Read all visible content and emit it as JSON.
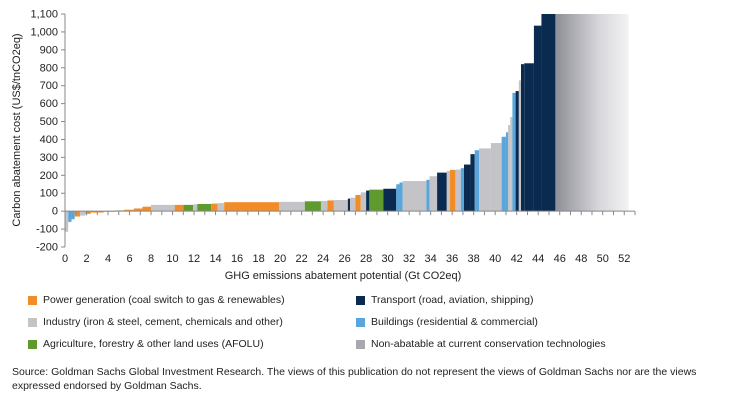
{
  "chart_data": {
    "type": "bar",
    "subtype": "marginal-abatement-cost-curve",
    "xlabel": "GHG emissions abatement potential  (Gt CO2eq)",
    "ylabel": "Carbon abatement cost (US$/tnCO2eq)",
    "xlim": [
      0,
      53
    ],
    "ylim": [
      -200,
      1100
    ],
    "x_ticks": [
      "0",
      "2",
      "4",
      "6",
      "8",
      "10",
      "12",
      "14",
      "16",
      "18",
      "20",
      "22",
      "24",
      "26",
      "28",
      "30",
      "32",
      "34",
      "36",
      "38",
      "40",
      "42",
      "44",
      "46",
      "48",
      "50",
      "52"
    ],
    "y_ticks": [
      "-200",
      "-100",
      "0",
      "100",
      "200",
      "300",
      "400",
      "500",
      "600",
      "700",
      "800",
      "900",
      "1,000",
      "1,100"
    ],
    "grid": false,
    "legend_position": "bottom",
    "series": [
      {
        "key": "power",
        "name": "Power generation (coal switch to gas & renewables)",
        "color": "#f28c28"
      },
      {
        "key": "transport",
        "name": "Transport (road, aviation, shipping)",
        "color": "#0b2a4f"
      },
      {
        "key": "industry",
        "name": "Industry (iron & steel, cement, chemicals and other)",
        "color": "#c4c4c8"
      },
      {
        "key": "buildings",
        "name": "Buildings (residential & commercial)",
        "color": "#5aa6dc"
      },
      {
        "key": "afolu",
        "name": "Agriculture, forestry & other land uses (AFOLU)",
        "color": "#5f9a2e"
      },
      {
        "key": "nonabatable",
        "name": "Non-abatable at current conservation technologies",
        "color": "#a8a8ae"
      }
    ],
    "bars": [
      {
        "x0": 0.0,
        "x1": 0.3,
        "value": -115,
        "series": "industry"
      },
      {
        "x0": 0.3,
        "x1": 0.6,
        "value": -60,
        "series": "buildings"
      },
      {
        "x0": 0.6,
        "x1": 0.9,
        "value": -45,
        "series": "buildings"
      },
      {
        "x0": 0.9,
        "x1": 1.4,
        "value": -30,
        "series": "power"
      },
      {
        "x0": 1.4,
        "x1": 1.9,
        "value": -25,
        "series": "industry"
      },
      {
        "x0": 1.9,
        "x1": 2.4,
        "value": -15,
        "series": "power"
      },
      {
        "x0": 2.4,
        "x1": 3.6,
        "value": -8,
        "series": "power"
      },
      {
        "x0": 3.6,
        "x1": 4.6,
        "value": -4,
        "series": "industry"
      },
      {
        "x0": 4.6,
        "x1": 5.5,
        "value": 4,
        "series": "afolu"
      },
      {
        "x0": 5.5,
        "x1": 6.4,
        "value": 8,
        "series": "power"
      },
      {
        "x0": 6.4,
        "x1": 7.2,
        "value": 15,
        "series": "power"
      },
      {
        "x0": 7.2,
        "x1": 8.0,
        "value": 25,
        "series": "power"
      },
      {
        "x0": 8.0,
        "x1": 10.2,
        "value": 35,
        "series": "industry"
      },
      {
        "x0": 10.2,
        "x1": 11.0,
        "value": 35,
        "series": "power"
      },
      {
        "x0": 11.0,
        "x1": 11.9,
        "value": 35,
        "series": "afolu"
      },
      {
        "x0": 11.9,
        "x1": 12.3,
        "value": 38,
        "series": "industry"
      },
      {
        "x0": 12.3,
        "x1": 13.6,
        "value": 40,
        "series": "afolu"
      },
      {
        "x0": 13.6,
        "x1": 14.2,
        "value": 42,
        "series": "power"
      },
      {
        "x0": 14.2,
        "x1": 14.8,
        "value": 45,
        "series": "industry"
      },
      {
        "x0": 14.8,
        "x1": 19.9,
        "value": 50,
        "series": "power"
      },
      {
        "x0": 19.9,
        "x1": 22.3,
        "value": 52,
        "series": "industry"
      },
      {
        "x0": 22.3,
        "x1": 23.8,
        "value": 55,
        "series": "afolu"
      },
      {
        "x0": 23.8,
        "x1": 24.4,
        "value": 57,
        "series": "industry"
      },
      {
        "x0": 24.4,
        "x1": 25.0,
        "value": 60,
        "series": "power"
      },
      {
        "x0": 25.0,
        "x1": 26.3,
        "value": 62,
        "series": "industry"
      },
      {
        "x0": 26.3,
        "x1": 26.5,
        "value": 70,
        "series": "transport"
      },
      {
        "x0": 26.5,
        "x1": 27.0,
        "value": 75,
        "series": "industry"
      },
      {
        "x0": 27.0,
        "x1": 27.5,
        "value": 90,
        "series": "power"
      },
      {
        "x0": 27.5,
        "x1": 28.0,
        "value": 105,
        "series": "industry"
      },
      {
        "x0": 28.0,
        "x1": 28.3,
        "value": 115,
        "series": "transport"
      },
      {
        "x0": 28.3,
        "x1": 29.6,
        "value": 120,
        "series": "afolu"
      },
      {
        "x0": 29.6,
        "x1": 30.8,
        "value": 125,
        "series": "transport"
      },
      {
        "x0": 30.8,
        "x1": 31.1,
        "value": 150,
        "series": "buildings"
      },
      {
        "x0": 31.1,
        "x1": 31.4,
        "value": 160,
        "series": "buildings"
      },
      {
        "x0": 31.4,
        "x1": 33.6,
        "value": 168,
        "series": "industry"
      },
      {
        "x0": 33.6,
        "x1": 33.9,
        "value": 175,
        "series": "buildings"
      },
      {
        "x0": 33.9,
        "x1": 34.6,
        "value": 195,
        "series": "industry"
      },
      {
        "x0": 34.6,
        "x1": 35.5,
        "value": 215,
        "series": "transport"
      },
      {
        "x0": 35.5,
        "x1": 35.8,
        "value": 225,
        "series": "industry"
      },
      {
        "x0": 35.8,
        "x1": 36.3,
        "value": 230,
        "series": "power"
      },
      {
        "x0": 36.3,
        "x1": 36.8,
        "value": 232,
        "series": "industry"
      },
      {
        "x0": 36.8,
        "x1": 37.1,
        "value": 240,
        "series": "buildings"
      },
      {
        "x0": 37.1,
        "x1": 37.7,
        "value": 260,
        "series": "transport"
      },
      {
        "x0": 37.7,
        "x1": 38.1,
        "value": 318,
        "series": "transport"
      },
      {
        "x0": 38.1,
        "x1": 38.5,
        "value": 340,
        "series": "buildings"
      },
      {
        "x0": 38.5,
        "x1": 39.6,
        "value": 350,
        "series": "industry"
      },
      {
        "x0": 39.6,
        "x1": 40.6,
        "value": 380,
        "series": "industry"
      },
      {
        "x0": 40.6,
        "x1": 41.0,
        "value": 415,
        "series": "buildings"
      },
      {
        "x0": 41.0,
        "x1": 41.2,
        "value": 440,
        "series": "buildings"
      },
      {
        "x0": 41.2,
        "x1": 41.4,
        "value": 480,
        "series": "industry"
      },
      {
        "x0": 41.4,
        "x1": 41.6,
        "value": 525,
        "series": "industry"
      },
      {
        "x0": 41.6,
        "x1": 41.9,
        "value": 660,
        "series": "buildings"
      },
      {
        "x0": 41.9,
        "x1": 42.2,
        "value": 670,
        "series": "transport"
      },
      {
        "x0": 42.2,
        "x1": 42.4,
        "value": 730,
        "series": "industry"
      },
      {
        "x0": 42.4,
        "x1": 42.7,
        "value": 820,
        "series": "transport"
      },
      {
        "x0": 42.7,
        "x1": 43.6,
        "value": 825,
        "series": "transport"
      },
      {
        "x0": 43.6,
        "x1": 44.3,
        "value": 1035,
        "series": "transport"
      },
      {
        "x0": 44.3,
        "x1": 45.6,
        "value": 1100,
        "series": "transport"
      },
      {
        "x0": 45.6,
        "x1": 52.4,
        "value": 1100,
        "series": "nonabatable",
        "gradient": true
      }
    ]
  },
  "legend": {
    "power": "Power generation (coal switch to gas & renewables)",
    "transport": "Transport (road, aviation, shipping)",
    "industry": "Industry (iron & steel, cement, chemicals and other)",
    "buildings": "Buildings (residential & commercial)",
    "afolu": "Agriculture, forestry & other land uses (AFOLU)",
    "nonabatable": "Non-abatable at current conservation technologies"
  },
  "source_text": "Source: Goldman Sachs Global Investment Research. The views of this publication do not represent the views of Goldman Sachs nor are the views expressed endorsed by Goldman Sachs.",
  "colors": {
    "power": "#f28c28",
    "transport": "#0b2a4f",
    "industry": "#c4c4c8",
    "buildings": "#5aa6dc",
    "afolu": "#5f9a2e",
    "nonabatable": "#a8a8ae"
  }
}
